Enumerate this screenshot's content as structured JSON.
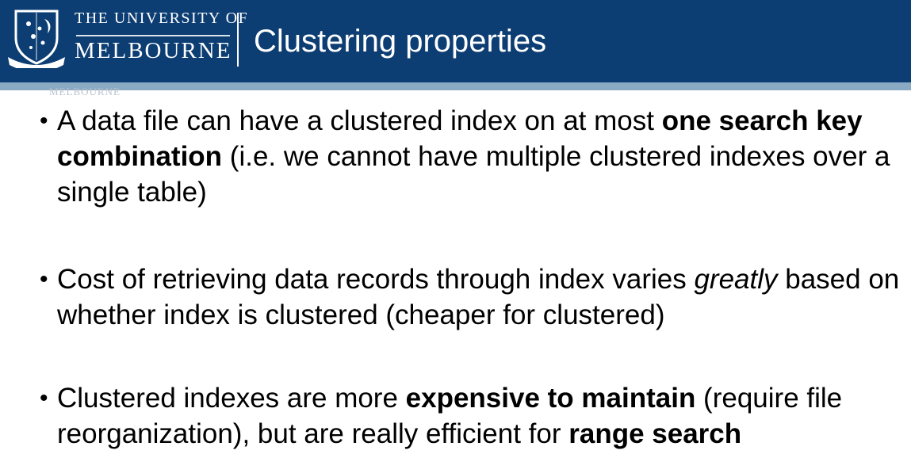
{
  "header": {
    "university_line1": "THE UNIVERSITY OF",
    "university_line2": "MELBOURNE",
    "title": "Clustering properties",
    "watermark": "MELBOURNE",
    "colors": {
      "header_bg": "#0c3d73",
      "header_strip": "#8aa9c2"
    },
    "crest_icon": "university-crest-icon"
  },
  "bullet_symbol": "•",
  "bullets": [
    {
      "part1": "A data file can have a clustered index on at most ",
      "bold1": "one search key combination",
      "part2": " (i.e. we cannot have multiple clustered indexes over a single table)"
    },
    {
      "part1": "Cost of retrieving data records through index varies ",
      "italic1": "greatly",
      "part2": " based on whether index is clustered (cheaper for clustered)"
    },
    {
      "part1": "Clustered indexes are more ",
      "bold1": "expensive to maintain",
      "part2": " (require file reorganization), but are really efficient for ",
      "bold2": "range search"
    }
  ]
}
